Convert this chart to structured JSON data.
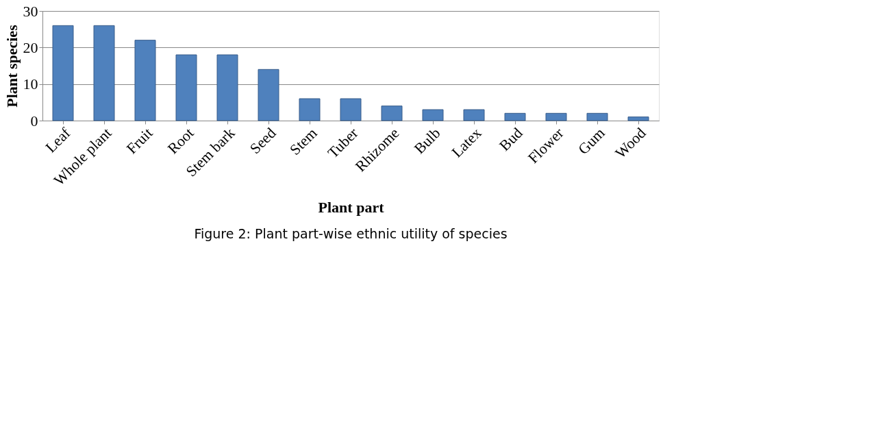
{
  "chart_data": {
    "type": "bar",
    "xlabel": "Plant part",
    "ylabel": "Plant species",
    "categories": [
      "Leaf",
      "Whole plant",
      "Fruit",
      "Root",
      "Stem bark",
      "Seed",
      "Stem",
      "Tuber",
      "Rhizome",
      "Bulb",
      "Latex",
      "Bud",
      "Flower",
      "Gum",
      "Wood"
    ],
    "values": [
      26,
      26,
      22,
      18,
      18,
      14,
      6,
      6,
      4,
      3,
      3,
      2,
      2,
      2,
      1
    ],
    "color": "#4f81bd",
    "ylim": [
      0,
      30
    ],
    "yticks": [
      0,
      10,
      20,
      30
    ],
    "grid": "y",
    "annotations": [
      "Figure 2: Plant part-wise ethnic utility of species"
    ]
  }
}
